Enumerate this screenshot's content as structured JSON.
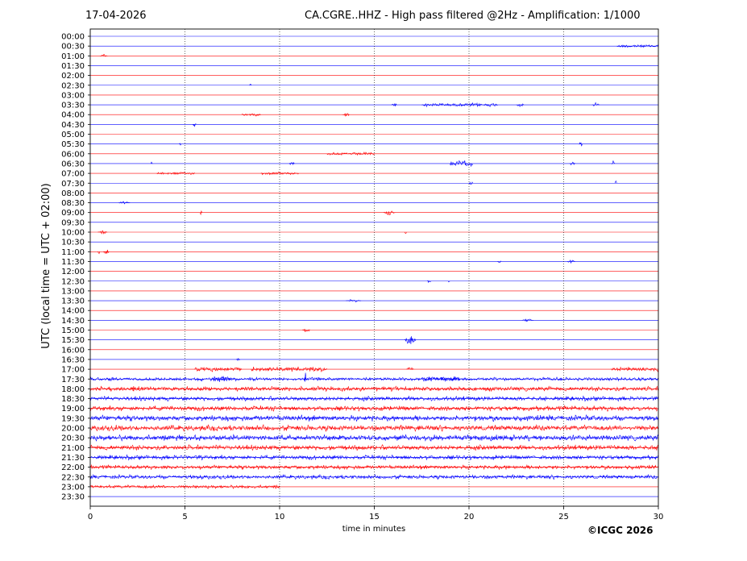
{
  "header": {
    "date": "17-04-2026",
    "title": "CA.CGRE..HHZ - High pass filtered @2Hz - Amplification: 1/1000"
  },
  "footer": {
    "copyright": "©ICGC 2026"
  },
  "chart_data": {
    "type": "line",
    "title": "CA.CGRE..HHZ - High pass filtered @2Hz - Amplification: 1/1000",
    "xlabel": "time in minutes",
    "ylabel": "UTC (local time = UTC + 02:00)",
    "xlim": [
      0,
      30
    ],
    "xticks": [
      0,
      5,
      10,
      15,
      20,
      25,
      30
    ],
    "vertical_gridlines": [
      5,
      10,
      15,
      20,
      25
    ],
    "grid": "dotted vertical",
    "colors": [
      "#0000ff",
      "#ff0000"
    ],
    "rows": [
      {
        "label": "00:00",
        "color": "#0000ff",
        "events": []
      },
      {
        "label": "00:30",
        "color": "#0000ff",
        "events": [
          {
            "t": 27.8,
            "dur": 2.2,
            "amp": 1.5
          }
        ]
      },
      {
        "label": "01:00",
        "color": "#ff0000",
        "events": [
          {
            "t": 0.5,
            "dur": 0.4,
            "amp": 1.5
          }
        ]
      },
      {
        "label": "01:30",
        "color": "#0000ff",
        "events": []
      },
      {
        "label": "02:00",
        "color": "#ff0000",
        "events": []
      },
      {
        "label": "02:30",
        "color": "#0000ff",
        "events": [
          {
            "t": 8.4,
            "dur": 0.1,
            "amp": 3
          }
        ]
      },
      {
        "label": "03:00",
        "color": "#ff0000",
        "events": []
      },
      {
        "label": "03:30",
        "color": "#0000ff",
        "events": [
          {
            "t": 15.9,
            "dur": 0.3,
            "amp": 2.5
          },
          {
            "t": 17.5,
            "dur": 4.0,
            "amp": 1.5
          },
          {
            "t": 22.5,
            "dur": 0.4,
            "amp": 2.5
          },
          {
            "t": 26.5,
            "dur": 0.4,
            "amp": 2
          }
        ]
      },
      {
        "label": "04:00",
        "color": "#ff0000",
        "events": [
          {
            "t": 13.3,
            "dur": 0.4,
            "amp": 2.5
          },
          {
            "t": 8.0,
            "dur": 1.0,
            "amp": 1.2
          }
        ]
      },
      {
        "label": "04:30",
        "color": "#0000ff",
        "events": [
          {
            "t": 5.4,
            "dur": 0.2,
            "amp": 2.5
          }
        ]
      },
      {
        "label": "05:00",
        "color": "#ff0000",
        "events": []
      },
      {
        "label": "05:30",
        "color": "#0000ff",
        "events": [
          {
            "t": 4.7,
            "dur": 0.1,
            "amp": 2
          },
          {
            "t": 25.8,
            "dur": 0.2,
            "amp": 2.5
          }
        ]
      },
      {
        "label": "06:00",
        "color": "#ff0000",
        "events": [
          {
            "t": 12.5,
            "dur": 2.5,
            "amp": 1.2
          }
        ]
      },
      {
        "label": "06:30",
        "color": "#0000ff",
        "events": [
          {
            "t": 3.2,
            "dur": 0.1,
            "amp": 3
          },
          {
            "t": 10.5,
            "dur": 0.3,
            "amp": 2
          },
          {
            "t": 19.0,
            "dur": 1.2,
            "amp": 2.5
          },
          {
            "t": 25.3,
            "dur": 0.3,
            "amp": 2
          },
          {
            "t": 27.5,
            "dur": 0.2,
            "amp": 3
          }
        ]
      },
      {
        "label": "07:00",
        "color": "#ff0000",
        "events": [
          {
            "t": 3.5,
            "dur": 2.0,
            "amp": 1.2
          },
          {
            "t": 9.0,
            "dur": 2.0,
            "amp": 1.2
          }
        ]
      },
      {
        "label": "07:30",
        "color": "#0000ff",
        "events": [
          {
            "t": 20.0,
            "dur": 0.2,
            "amp": 2
          },
          {
            "t": 27.7,
            "dur": 0.1,
            "amp": 3
          }
        ]
      },
      {
        "label": "08:00",
        "color": "#ff0000",
        "events": []
      },
      {
        "label": "08:30",
        "color": "#0000ff",
        "events": [
          {
            "t": 1.5,
            "dur": 0.6,
            "amp": 1.5
          }
        ]
      },
      {
        "label": "09:00",
        "color": "#ff0000",
        "events": [
          {
            "t": 5.8,
            "dur": 0.1,
            "amp": 4
          },
          {
            "t": 15.5,
            "dur": 0.6,
            "amp": 3
          }
        ]
      },
      {
        "label": "09:30",
        "color": "#0000ff",
        "events": []
      },
      {
        "label": "10:00",
        "color": "#ff0000",
        "events": [
          {
            "t": 0.4,
            "dur": 0.5,
            "amp": 2
          },
          {
            "t": 16.6,
            "dur": 0.1,
            "amp": 2.5
          }
        ]
      },
      {
        "label": "10:30",
        "color": "#0000ff",
        "events": []
      },
      {
        "label": "11:00",
        "color": "#ff0000",
        "events": [
          {
            "t": 0.4,
            "dur": 0.1,
            "amp": 3
          },
          {
            "t": 0.7,
            "dur": 0.3,
            "amp": 4
          }
        ]
      },
      {
        "label": "11:30",
        "color": "#0000ff",
        "events": [
          {
            "t": 21.5,
            "dur": 0.2,
            "amp": 2
          },
          {
            "t": 25.2,
            "dur": 0.4,
            "amp": 2
          }
        ]
      },
      {
        "label": "12:00",
        "color": "#ff0000",
        "events": []
      },
      {
        "label": "12:30",
        "color": "#0000ff",
        "events": [
          {
            "t": 17.8,
            "dur": 0.2,
            "amp": 2
          },
          {
            "t": 18.9,
            "dur": 0.1,
            "amp": 3
          }
        ]
      },
      {
        "label": "13:00",
        "color": "#ff0000",
        "events": []
      },
      {
        "label": "13:30",
        "color": "#0000ff",
        "events": [
          {
            "t": 13.5,
            "dur": 0.8,
            "amp": 1.2
          }
        ]
      },
      {
        "label": "14:00",
        "color": "#ff0000",
        "events": []
      },
      {
        "label": "14:30",
        "color": "#0000ff",
        "events": [
          {
            "t": 22.8,
            "dur": 0.6,
            "amp": 1.5
          }
        ]
      },
      {
        "label": "15:00",
        "color": "#ff0000",
        "events": [
          {
            "t": 11.2,
            "dur": 0.4,
            "amp": 2
          }
        ]
      },
      {
        "label": "15:30",
        "color": "#0000ff",
        "events": [
          {
            "t": 16.6,
            "dur": 0.6,
            "amp": 7
          }
        ]
      },
      {
        "label": "16:00",
        "color": "#ff0000",
        "events": []
      },
      {
        "label": "16:30",
        "color": "#0000ff",
        "events": [
          {
            "t": 7.7,
            "dur": 0.2,
            "amp": 1.5
          }
        ]
      },
      {
        "label": "17:00",
        "color": "#ff0000",
        "events": [
          {
            "t": 5.5,
            "dur": 2.5,
            "amp": 2
          },
          {
            "t": 8.5,
            "dur": 4.0,
            "amp": 2
          },
          {
            "t": 16.7,
            "dur": 0.4,
            "amp": 2.5
          },
          {
            "t": 27.5,
            "dur": 2.5,
            "amp": 1.8
          }
        ]
      },
      {
        "label": "17:30",
        "color": "#0000ff",
        "events": [
          {
            "t": 0.0,
            "dur": 30.0,
            "amp": 1.5
          },
          {
            "t": 6.5,
            "dur": 1.0,
            "amp": 3
          },
          {
            "t": 11.3,
            "dur": 0.1,
            "amp": 6
          },
          {
            "t": 17.5,
            "dur": 2.0,
            "amp": 2.5
          }
        ]
      },
      {
        "label": "18:00",
        "color": "#ff0000",
        "events": [
          {
            "t": 0.0,
            "dur": 30.0,
            "amp": 2
          },
          {
            "t": 2.2,
            "dur": 0.15,
            "amp": 4
          }
        ]
      },
      {
        "label": "18:30",
        "color": "#0000ff",
        "events": [
          {
            "t": 0.0,
            "dur": 30.0,
            "amp": 2
          }
        ]
      },
      {
        "label": "19:00",
        "color": "#ff0000",
        "events": [
          {
            "t": 0.0,
            "dur": 30.0,
            "amp": 2.2
          }
        ]
      },
      {
        "label": "19:30",
        "color": "#0000ff",
        "events": [
          {
            "t": 0.0,
            "dur": 30.0,
            "amp": 2.5
          }
        ]
      },
      {
        "label": "20:00",
        "color": "#ff0000",
        "events": [
          {
            "t": 0.0,
            "dur": 30.0,
            "amp": 2.5
          }
        ]
      },
      {
        "label": "20:30",
        "color": "#0000ff",
        "events": [
          {
            "t": 0.0,
            "dur": 30.0,
            "amp": 2.5
          }
        ]
      },
      {
        "label": "21:00",
        "color": "#ff0000",
        "events": [
          {
            "t": 0.0,
            "dur": 30.0,
            "amp": 2.3
          }
        ]
      },
      {
        "label": "21:30",
        "color": "#0000ff",
        "events": [
          {
            "t": 0.0,
            "dur": 30.0,
            "amp": 2
          }
        ]
      },
      {
        "label": "22:00",
        "color": "#ff0000",
        "events": [
          {
            "t": 0.0,
            "dur": 30.0,
            "amp": 1.8
          }
        ]
      },
      {
        "label": "22:30",
        "color": "#0000ff",
        "events": [
          {
            "t": 0.0,
            "dur": 30.0,
            "amp": 1.8
          }
        ]
      },
      {
        "label": "23:00",
        "color": "#ff0000",
        "events": [
          {
            "t": 0.0,
            "dur": 10.0,
            "amp": 1.5
          }
        ]
      },
      {
        "label": "23:30",
        "color": "#0000ff",
        "events": []
      }
    ]
  }
}
